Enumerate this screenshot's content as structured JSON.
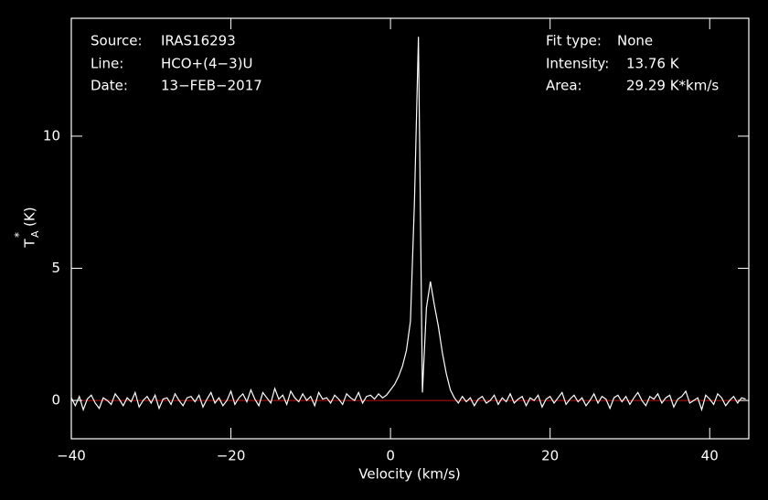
{
  "chart_data": {
    "type": "line",
    "xlabel": "Velocity (km/s)",
    "ylabel": {
      "base": "T",
      "sub": "A",
      "sup": "*",
      "unit": "(K)"
    },
    "annotations": [
      {
        "label": "Source:",
        "value": "IRAS16293"
      },
      {
        "label": "Line:",
        "value": "HCO+(4−3)U"
      },
      {
        "label": "Date:",
        "value": "13−FEB−2017"
      },
      {
        "label": "Fit type:",
        "value": "None"
      },
      {
        "label": "Intensity:",
        "value": "13.76 K"
      },
      {
        "label": "Area:",
        "value": "29.29 K*km/s"
      }
    ],
    "xlim": [
      -40,
      44.9
    ],
    "ylim": [
      -1.45,
      14.46
    ],
    "xticks": [
      {
        "value": -40,
        "label": "−40"
      },
      {
        "value": -20,
        "label": "−20"
      },
      0,
      20,
      40
    ],
    "yticks": [
      0,
      5,
      10
    ],
    "baseline": 0,
    "baseline_color": "#c01010",
    "x": [
      -40,
      -39.5,
      -39,
      -38.5,
      -38,
      -37.5,
      -37,
      -36.5,
      -36,
      -35.5,
      -35,
      -34.5,
      -34,
      -33.5,
      -33,
      -32.5,
      -32,
      -31.5,
      -31,
      -30.5,
      -30,
      -29.5,
      -29,
      -28.5,
      -28,
      -27.5,
      -27,
      -26.5,
      -26,
      -25.5,
      -25,
      -24.5,
      -24,
      -23.5,
      -23,
      -22.5,
      -22,
      -21.5,
      -21,
      -20.5,
      -20,
      -19.5,
      -19,
      -18.5,
      -18,
      -17.5,
      -17,
      -16.5,
      -16,
      -15.5,
      -15,
      -14.5,
      -14,
      -13.5,
      -13,
      -12.5,
      -12,
      -11.5,
      -11,
      -10.5,
      -10,
      -9.5,
      -9,
      -8.5,
      -8,
      -7.5,
      -7,
      -6.5,
      -6,
      -5.5,
      -5,
      -4.5,
      -4,
      -3.5,
      -3,
      -2.5,
      -2,
      -1.5,
      -1,
      -0.5,
      0,
      0.5,
      1,
      1.5,
      2,
      2.5,
      3,
      3.5,
      4,
      4.5,
      5,
      5.5,
      6,
      6.5,
      7,
      7.5,
      8,
      8.5,
      9,
      9.5,
      10,
      10.5,
      11,
      11.5,
      12,
      12.5,
      13,
      13.5,
      14,
      14.5,
      15,
      15.5,
      16,
      16.5,
      17,
      17.5,
      18,
      18.5,
      19,
      19.5,
      20,
      20.5,
      21,
      21.5,
      22,
      22.5,
      23,
      23.5,
      24,
      24.5,
      25,
      25.5,
      26,
      26.5,
      27,
      27.5,
      28,
      28.5,
      29,
      29.5,
      30,
      30.5,
      31,
      31.5,
      32,
      32.5,
      33,
      33.5,
      34,
      34.5,
      35,
      35.5,
      36,
      36.5,
      37,
      37.5,
      38,
      38.5,
      39,
      39.5,
      40,
      40.5,
      41,
      41.5,
      42,
      42.5,
      43,
      43.5,
      44,
      44.5
    ],
    "series": [
      {
        "color": "#ffffff",
        "values": [
          0.1,
          -0.2,
          0.15,
          -0.35,
          0.05,
          0.2,
          -0.1,
          -0.3,
          0.1,
          0.0,
          -0.15,
          0.25,
          0.05,
          -0.2,
          0.1,
          -0.05,
          0.3,
          -0.25,
          0.0,
          0.15,
          -0.1,
          0.2,
          -0.3,
          0.05,
          0.1,
          -0.15,
          0.25,
          0.0,
          -0.2,
          0.1,
          0.15,
          -0.05,
          0.2,
          -0.25,
          0.05,
          0.3,
          -0.1,
          0.1,
          -0.2,
          0.0,
          0.35,
          -0.15,
          0.1,
          0.25,
          -0.05,
          0.4,
          0.05,
          -0.2,
          0.3,
          0.1,
          -0.1,
          0.45,
          0.05,
          0.2,
          -0.15,
          0.35,
          0.1,
          -0.05,
          0.25,
          0.0,
          0.15,
          -0.2,
          0.3,
          0.05,
          0.1,
          -0.1,
          0.2,
          0.05,
          -0.15,
          0.25,
          0.1,
          0.0,
          0.3,
          -0.1,
          0.15,
          0.2,
          0.05,
          0.25,
          0.1,
          0.2,
          0.4,
          0.6,
          0.9,
          1.3,
          1.9,
          3.0,
          7.5,
          13.76,
          0.3,
          3.5,
          4.5,
          3.6,
          2.8,
          1.8,
          1.0,
          0.4,
          0.1,
          -0.1,
          0.15,
          -0.05,
          0.1,
          -0.2,
          0.05,
          0.15,
          -0.1,
          0.0,
          0.2,
          -0.15,
          0.1,
          -0.05,
          0.25,
          -0.1,
          0.05,
          0.15,
          -0.2,
          0.1,
          0.0,
          0.2,
          -0.25,
          0.05,
          0.15,
          -0.1,
          0.1,
          0.3,
          -0.15,
          0.05,
          0.2,
          -0.05,
          0.1,
          -0.2,
          0.0,
          0.25,
          -0.1,
          0.15,
          0.05,
          -0.3,
          0.1,
          0.2,
          -0.05,
          0.15,
          -0.15,
          0.1,
          0.3,
          0.0,
          -0.2,
          0.15,
          0.05,
          0.25,
          -0.1,
          0.1,
          0.2,
          -0.25,
          0.05,
          0.15,
          0.35,
          -0.1,
          0.0,
          0.1,
          -0.35,
          0.2,
          0.05,
          -0.15,
          0.25,
          0.1,
          -0.2,
          0.0,
          0.15,
          -0.1,
          0.1,
          0.05
        ]
      }
    ]
  }
}
